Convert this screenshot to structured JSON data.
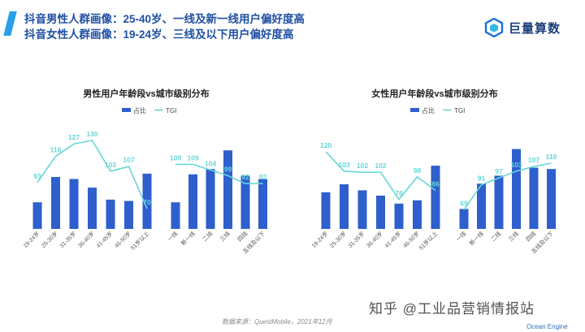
{
  "header": {
    "title_line1": "抖音男性人群画像：25-40岁、一线及新一线用户偏好度高",
    "title_line2": "抖音女性人群画像：19-24岁、三线及以下用户偏好度高",
    "logo_text": "巨量算数"
  },
  "footer": {
    "source": "数据来源：QuestMobile，2021年12月",
    "watermark": "知乎 @工业品营销情报站",
    "brand_corner": "Ocean Engine"
  },
  "colors": {
    "bar": "#2e5fcd",
    "line": "#67d6d6",
    "title": "#1f4fa3",
    "accent": "#2aa0e8"
  },
  "chart_data": [
    {
      "type": "bar",
      "title": "男性用户年龄段vs城市级别分布",
      "legend": [
        "占比",
        "TGI"
      ],
      "age_groups": {
        "categories": [
          "19-24岁",
          "25-30岁",
          "31-35岁",
          "36-40岁",
          "41-45岁",
          "46-50岁",
          "51岁以上"
        ],
        "bar_values": [
          0.4,
          0.78,
          0.75,
          0.62,
          0.44,
          0.42,
          0.83
        ],
        "tgi": [
          93,
          116,
          127,
          130,
          103,
          107,
          70
        ]
      },
      "city_tiers": {
        "categories": [
          "一线",
          "新一线",
          "二线",
          "三线",
          "四线",
          "五线及以下"
        ],
        "bar_values": [
          0.4,
          0.82,
          0.9,
          1.18,
          0.8,
          0.75
        ],
        "tgi": [
          109,
          109,
          104,
          99,
          92,
          92
        ]
      }
    },
    {
      "type": "bar",
      "title": "女性用户年龄段vs城市级别分布",
      "legend": [
        "占比",
        "TGI"
      ],
      "age_groups": {
        "categories": [
          "19-24岁",
          "25-30岁",
          "31-35岁",
          "36-40岁",
          "41-45岁",
          "46-50岁",
          "51岁以上"
        ],
        "bar_values": [
          0.55,
          0.67,
          0.58,
          0.5,
          0.38,
          0.43,
          0.95
        ],
        "tgi": [
          120,
          103,
          102,
          102,
          78,
          98,
          86
        ]
      },
      "city_tiers": {
        "categories": [
          "一线",
          "新一线",
          "二线",
          "三线",
          "四线",
          "五线及以下"
        ],
        "bar_values": [
          0.3,
          0.68,
          0.8,
          1.2,
          0.92,
          0.9
        ],
        "tgi": [
          69,
          91,
          97,
          103,
          107,
          110
        ]
      }
    }
  ]
}
